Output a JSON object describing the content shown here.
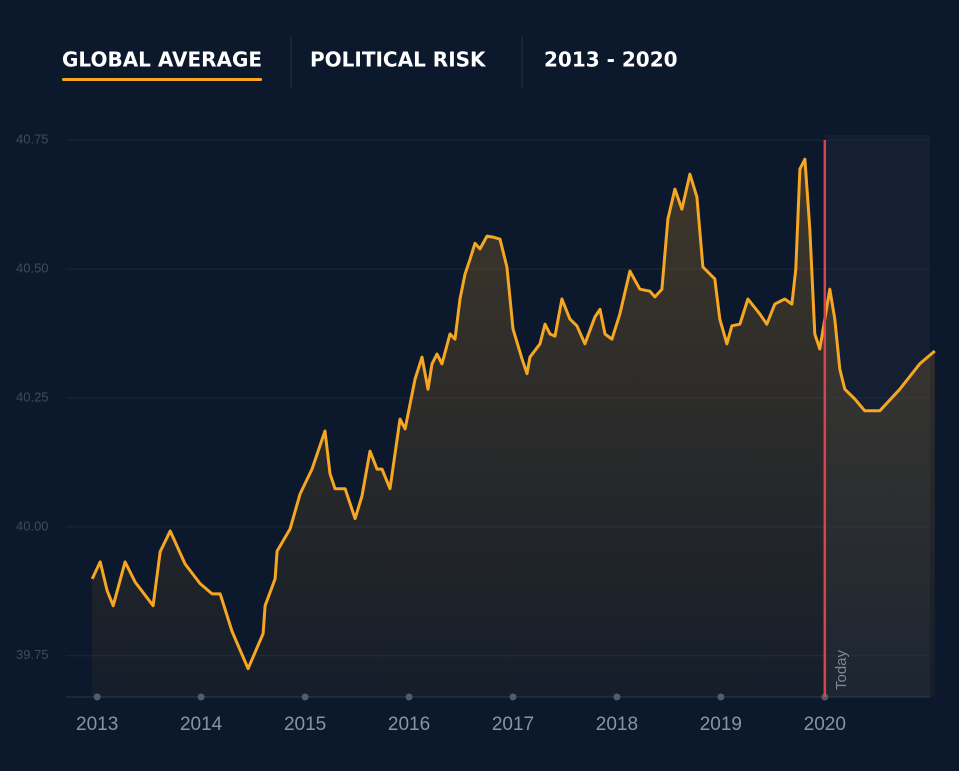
{
  "header": {
    "tabs": [
      "GLOBAL AVERAGE",
      "POLITICAL RISK",
      "2013 - 2020"
    ]
  },
  "chart_data": {
    "type": "area-line",
    "x": [
      2012.952,
      2013.029,
      2013.096,
      2013.154,
      2013.269,
      2013.365,
      2013.538,
      2013.606,
      2013.702,
      2013.846,
      2013.99,
      2014.106,
      2014.183,
      2014.298,
      2014.452,
      2014.596,
      2014.615,
      2014.712,
      2014.731,
      2014.856,
      2014.952,
      2015.067,
      2015.192,
      2015.24,
      2015.288,
      2015.385,
      2015.481,
      2015.548,
      2015.625,
      2015.692,
      2015.74,
      2015.817,
      2015.913,
      2015.962,
      2016.058,
      2016.125,
      2016.183,
      2016.221,
      2016.269,
      2016.317,
      2016.394,
      2016.442,
      2016.49,
      2016.538,
      2016.587,
      2016.635,
      2016.683,
      2016.75,
      2016.808,
      2016.875,
      2016.942,
      2017.0,
      2017.087,
      2017.135,
      2017.163,
      2017.26,
      2017.308,
      2017.356,
      2017.404,
      2017.471,
      2017.548,
      2017.615,
      2017.692,
      2017.788,
      2017.837,
      2017.885,
      2017.952,
      2018.029,
      2018.125,
      2018.221,
      2018.317,
      2018.365,
      2018.433,
      2018.49,
      2018.558,
      2018.625,
      2018.702,
      2018.769,
      2018.827,
      2018.942,
      2018.99,
      2019.058,
      2019.106,
      2019.183,
      2019.26,
      2019.375,
      2019.442,
      2019.519,
      2019.615,
      2019.683,
      2019.721,
      2019.76,
      2019.808,
      2019.856,
      2019.904,
      2019.952,
      2020.0,
      2020.048,
      2020.096,
      2020.144,
      2020.192,
      2020.288,
      2020.385,
      2020.529,
      2020.721,
      2020.913,
      2021.058
    ],
    "values": [
      39.899,
      39.932,
      39.876,
      39.847,
      39.932,
      39.893,
      39.847,
      39.952,
      39.992,
      39.928,
      39.89,
      39.87,
      39.87,
      39.797,
      39.725,
      39.793,
      39.847,
      39.899,
      39.953,
      39.996,
      40.064,
      40.112,
      40.186,
      40.103,
      40.074,
      40.074,
      40.016,
      40.06,
      40.147,
      40.112,
      40.112,
      40.074,
      40.209,
      40.19,
      40.287,
      40.329,
      40.267,
      40.316,
      40.335,
      40.316,
      40.374,
      40.364,
      40.442,
      40.49,
      40.519,
      40.55,
      40.539,
      40.564,
      40.562,
      40.558,
      40.504,
      40.384,
      40.326,
      40.297,
      40.329,
      40.355,
      40.393,
      40.374,
      40.37,
      40.442,
      40.403,
      40.39,
      40.355,
      40.407,
      40.422,
      40.374,
      40.364,
      40.413,
      40.496,
      40.461,
      40.457,
      40.446,
      40.461,
      40.597,
      40.655,
      40.616,
      40.684,
      40.64,
      40.504,
      40.481,
      40.403,
      40.355,
      40.39,
      40.393,
      40.442,
      40.413,
      40.393,
      40.432,
      40.442,
      40.432,
      40.5,
      40.694,
      40.713,
      40.578,
      40.374,
      40.345,
      40.403,
      40.461,
      40.403,
      40.306,
      40.267,
      40.248,
      40.225,
      40.225,
      40.267,
      40.316,
      40.341
    ],
    "color": "#f5a623",
    "xlim": [
      2012.7,
      2021.06
    ],
    "ylim": [
      39.67,
      40.76
    ],
    "xticks": [
      2013,
      2014,
      2015,
      2016,
      2017,
      2018,
      2019,
      2020
    ],
    "yticks": [
      39.75,
      {
        "value": 40,
        "label": "40.00"
      },
      40.25,
      {
        "value": 40.5,
        "label": "40.50"
      },
      40.75
    ],
    "grid": true,
    "marker": {
      "x": 2020,
      "label": "Today",
      "color": "#d9434e"
    }
  }
}
